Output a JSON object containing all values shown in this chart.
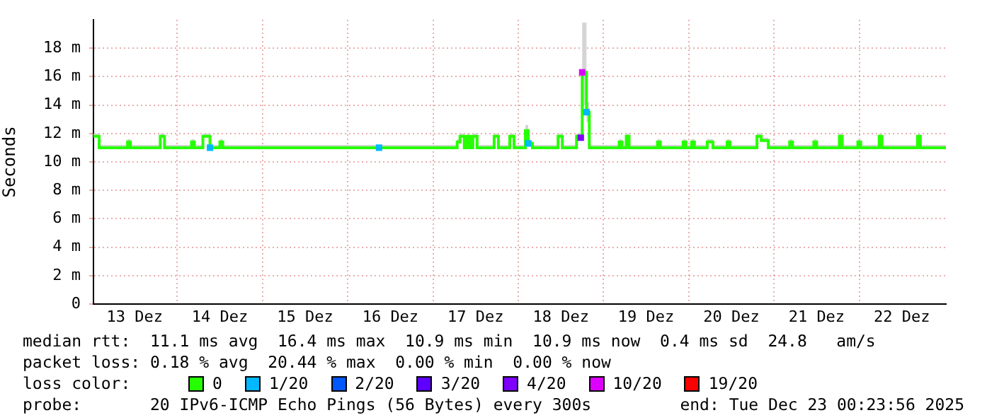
{
  "chart_data": {
    "type": "line",
    "ylabel": "Seconds",
    "legend_title": "loss color:",
    "legend": "bottom",
    "grid": true,
    "xlim": [
      "2025-12-13T00:24",
      "2025-12-23T00:24"
    ],
    "xticks": [
      {
        "value": "2025-12-13T12:00",
        "label": "13 Dez"
      },
      {
        "value": "2025-12-14T00:00",
        "label": null
      },
      {
        "value": "2025-12-14T12:00",
        "label": "14 Dez"
      },
      {
        "value": "2025-12-15T00:00",
        "label": null
      },
      {
        "value": "2025-12-15T12:00",
        "label": "15 Dez"
      },
      {
        "value": "2025-12-16T00:00",
        "label": null
      },
      {
        "value": "2025-12-16T12:00",
        "label": "16 Dez"
      },
      {
        "value": "2025-12-17T00:00",
        "label": null
      },
      {
        "value": "2025-12-17T12:00",
        "label": "17 Dez"
      },
      {
        "value": "2025-12-18T00:00",
        "label": null
      },
      {
        "value": "2025-12-18T12:00",
        "label": "18 Dez"
      },
      {
        "value": "2025-12-19T00:00",
        "label": null
      },
      {
        "value": "2025-12-19T12:00",
        "label": "19 Dez"
      },
      {
        "value": "2025-12-20T00:00",
        "label": null
      },
      {
        "value": "2025-12-20T12:00",
        "label": "20 Dez"
      },
      {
        "value": "2025-12-21T00:00",
        "label": null
      },
      {
        "value": "2025-12-21T12:00",
        "label": "21 Dez"
      },
      {
        "value": "2025-12-22T00:00",
        "label": null
      },
      {
        "value": "2025-12-22T12:00",
        "label": "22 Dez"
      }
    ],
    "ylim": [
      0,
      20
    ],
    "yticks": [
      0,
      {
        "value": 2,
        "label": "2 m"
      },
      {
        "value": 4,
        "label": "4 m"
      },
      {
        "value": 6,
        "label": "6 m"
      },
      {
        "value": 8,
        "label": "8 m"
      },
      {
        "value": 10,
        "label": "10 m"
      },
      {
        "value": 12,
        "label": "12 m"
      },
      {
        "value": 14,
        "label": "14 m"
      },
      {
        "value": 16,
        "label": "16 m"
      },
      {
        "value": 18,
        "label": "18 m"
      }
    ],
    "series": [
      {
        "name": "0",
        "type": "step",
        "color": "#26ff00",
        "x": [
          "2025-12-13T00:24",
          "2025-12-13T02:00",
          "2025-12-13T10:00",
          "2025-12-13T10:48",
          "2025-12-13T19:12",
          "2025-12-13T20:24",
          "2025-12-14T04:00",
          "2025-12-14T04:48",
          "2025-12-14T07:12",
          "2025-12-14T09:12",
          "2025-12-14T12:00",
          "2025-12-14T12:48",
          "2025-12-17T06:48",
          "2025-12-17T07:36",
          "2025-12-17T08:48",
          "2025-12-17T09:36",
          "2025-12-17T10:24",
          "2025-12-17T11:12",
          "2025-12-17T12:24",
          "2025-12-17T17:12",
          "2025-12-17T18:24",
          "2025-12-17T21:36",
          "2025-12-17T22:48",
          "2025-12-18T02:00",
          "2025-12-18T02:48",
          "2025-12-18T04:00",
          "2025-12-18T11:12",
          "2025-12-18T12:24",
          "2025-12-18T16:24",
          "2025-12-18T17:36",
          "2025-12-18T18:00",
          "2025-12-18T19:12",
          "2025-12-18T20:00",
          "2025-12-19T04:24",
          "2025-12-19T05:12",
          "2025-12-19T06:24",
          "2025-12-19T07:12",
          "2025-12-19T15:12",
          "2025-12-19T16:00",
          "2025-12-19T22:24",
          "2025-12-19T23:12",
          "2025-12-20T00:48",
          "2025-12-20T01:36",
          "2025-12-20T05:12",
          "2025-12-20T06:48",
          "2025-12-20T10:48",
          "2025-12-20T11:36",
          "2025-12-20T19:12",
          "2025-12-20T20:24",
          "2025-12-20T22:24",
          "2025-12-21T04:24",
          "2025-12-21T05:12",
          "2025-12-21T11:12",
          "2025-12-21T12:00",
          "2025-12-21T18:24",
          "2025-12-21T19:12",
          "2025-12-21T23:36",
          "2025-12-22T00:24",
          "2025-12-22T05:36",
          "2025-12-22T06:24",
          "2025-12-22T16:24",
          "2025-12-22T17:12",
          "2025-12-23T00:24"
        ],
        "values": [
          11.8,
          11,
          11.4,
          11,
          11.8,
          11,
          11.4,
          11,
          11.8,
          11,
          11.4,
          11,
          11.4,
          11.8,
          11,
          11.8,
          11,
          11.8,
          11,
          11.8,
          11,
          11.8,
          11,
          12.2,
          11.3,
          11,
          11.8,
          11,
          11.8,
          11.7,
          16.3,
          13.5,
          11,
          11.4,
          11,
          11.8,
          11,
          11.4,
          11,
          11.4,
          11,
          11.4,
          11,
          11.4,
          11,
          11.4,
          11,
          11.8,
          11.5,
          11,
          11.4,
          11,
          11.4,
          11,
          11.8,
          11,
          11.4,
          11,
          11.8,
          11,
          11.8,
          11,
          11
        ],
        "lower": [
          11.7,
          10.9,
          11.3,
          10.9,
          11.7,
          10.9,
          11.3,
          10.9,
          11.7,
          10.9,
          11.3,
          10.9,
          11.3,
          11.7,
          10.9,
          11.7,
          10.9,
          11.7,
          10.9,
          11.7,
          10.9,
          11.7,
          10.9,
          12.1,
          11.2,
          10.9,
          11.7,
          10.9,
          11.7,
          11.6,
          14,
          12.8,
          10.9,
          11.3,
          10.9,
          11.7,
          10.9,
          11.3,
          10.9,
          11.3,
          10.9,
          11.3,
          10.9,
          11.3,
          10.9,
          11.3,
          10.9,
          11.7,
          11.4,
          10.9,
          11.3,
          10.9,
          11.3,
          10.9,
          11.7,
          10.9,
          11.3,
          10.9,
          11.7,
          10.9,
          11.7,
          10.9,
          10.9
        ],
        "upper": [
          12,
          11.2,
          11.6,
          11.2,
          12,
          11.2,
          11.6,
          11.2,
          12,
          11.2,
          11.6,
          11.2,
          11.6,
          12,
          11.2,
          12,
          11.2,
          12,
          11.2,
          12,
          11.2,
          12,
          11.2,
          12.6,
          11.5,
          11.2,
          12,
          11.2,
          12,
          12.4,
          19.8,
          14.2,
          11.2,
          11.6,
          11.2,
          12,
          11.2,
          11.6,
          11.2,
          11.6,
          11.2,
          11.6,
          11.2,
          11.6,
          11.2,
          11.6,
          11.2,
          12,
          11.7,
          11.2,
          11.6,
          11.2,
          11.6,
          11.2,
          12,
          11.2,
          11.6,
          11.2,
          12,
          11.2,
          12,
          11.2,
          11.2
        ]
      },
      {
        "name": "1/20",
        "type": "scatter",
        "marker": "square",
        "color": "#00b8ff",
        "x": [
          "2025-12-14T09:12",
          "2025-12-16T08:48",
          "2025-12-18T02:48",
          "2025-12-18T19:12"
        ],
        "values": [
          11,
          11,
          11.3,
          13.5
        ]
      },
      {
        "name": "2/20",
        "type": "scatter",
        "marker": "square",
        "color": "#0059ff"
      },
      {
        "name": "3/20",
        "type": "scatter",
        "marker": "square",
        "color": "#5e00ff"
      },
      {
        "name": "4/20",
        "type": "scatter",
        "marker": "square",
        "color": "#7e00ff",
        "x": [
          "2025-12-18T17:36"
        ],
        "values": [
          11.7
        ]
      },
      {
        "name": "10/20",
        "type": "scatter",
        "marker": "square",
        "color": "#dd00ff",
        "x": [
          "2025-12-18T18:00"
        ],
        "values": [
          16.3
        ]
      },
      {
        "name": "19/20",
        "type": "scatter",
        "marker": "square",
        "color": "#ff0000"
      }
    ],
    "annotations": [
      "median rtt:  11.1 ms avg  16.4 ms max  10.9 ms min  10.9 ms now  0.4 ms sd  24.8   am/s",
      "packet loss: 0.18 % avg  20.44 % max  0.00 % min  0.00 % now",
      "probe:       20 IPv6-ICMP Echo Pings (56 Bytes) every 300s",
      "end: Tue Dec 23 00:23:56 2025"
    ]
  }
}
